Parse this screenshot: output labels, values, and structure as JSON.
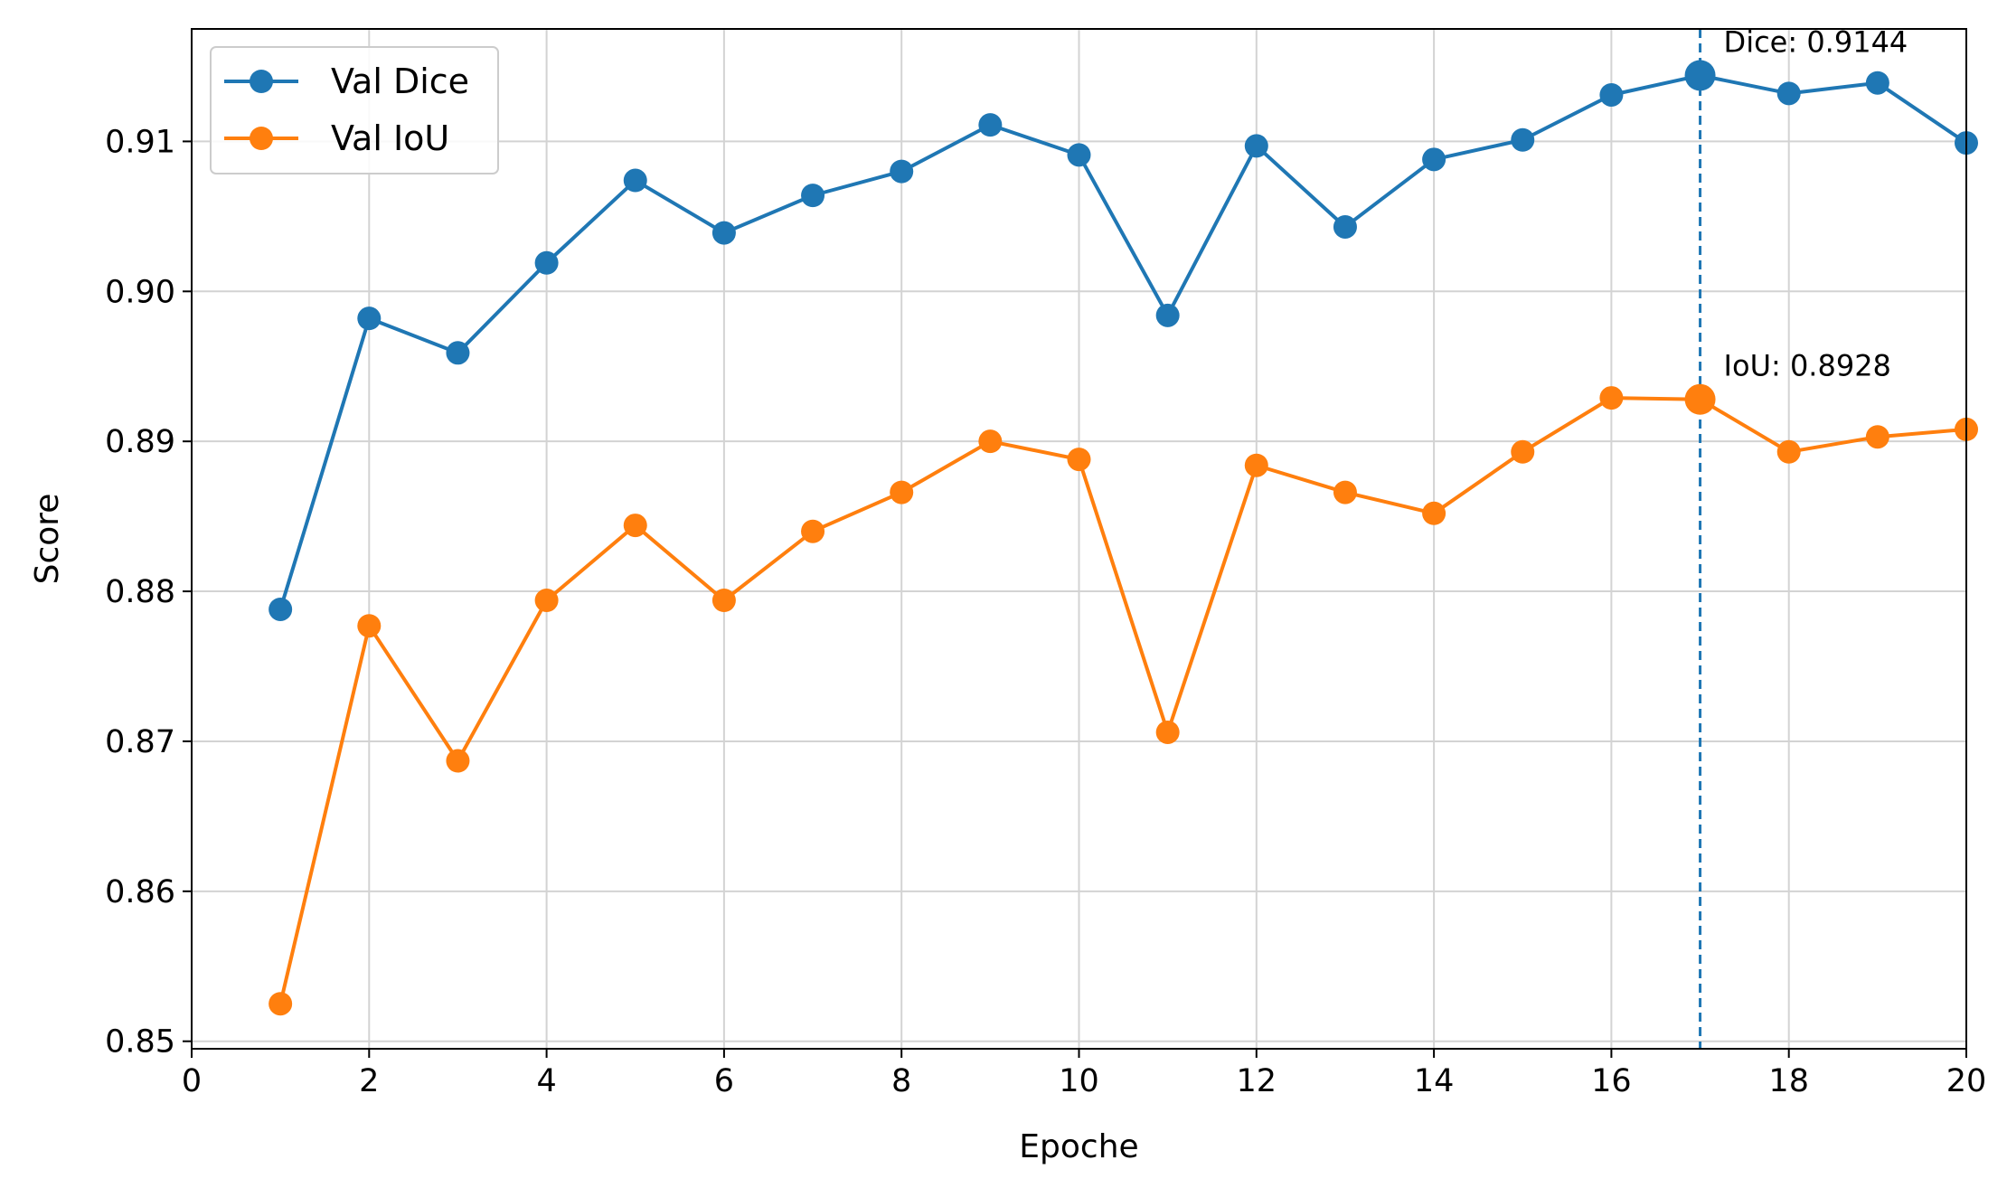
{
  "chart_data": {
    "type": "line",
    "title": "",
    "xlabel": "Epoche",
    "ylabel": "Score",
    "xlim": [
      0,
      20
    ],
    "ylim": [
      0.8495,
      0.9175
    ],
    "xticks": [
      0,
      2,
      4,
      6,
      8,
      10,
      12,
      14,
      16,
      18,
      20
    ],
    "yticks": [
      0.85,
      0.86,
      0.87,
      0.88,
      0.89,
      0.9,
      0.91
    ],
    "ytick_labels": [
      "0.85",
      "0.86",
      "0.87",
      "0.88",
      "0.89",
      "0.90",
      "0.91"
    ],
    "grid": true,
    "legend_position": "top-left",
    "x": [
      1,
      2,
      3,
      4,
      5,
      6,
      7,
      8,
      9,
      10,
      11,
      12,
      13,
      14,
      15,
      16,
      17,
      18,
      19,
      20
    ],
    "series": [
      {
        "name": "Val Dice",
        "color": "#1f77b4",
        "values": [
          0.8788,
          0.8982,
          0.8959,
          0.9019,
          0.9074,
          0.9039,
          0.9064,
          0.908,
          0.9111,
          0.9091,
          0.8984,
          0.9097,
          0.9043,
          0.9088,
          0.9101,
          0.9131,
          0.9144,
          0.9132,
          0.9139,
          0.9099
        ]
      },
      {
        "name": "Val IoU",
        "color": "#ff7f0e",
        "values": [
          0.8525,
          0.8777,
          0.8687,
          0.8794,
          0.8844,
          0.8794,
          0.884,
          0.8866,
          0.89,
          0.8888,
          0.8706,
          0.8884,
          0.8866,
          0.8852,
          0.8893,
          0.8929,
          0.8928,
          0.8893,
          0.8903,
          0.8908
        ]
      }
    ],
    "best_epoch": 17,
    "best_line_color": "#1f77b4",
    "annotations": [
      {
        "text": "Dice: 0.9144",
        "x": 17,
        "y": 0.9144,
        "series": 0
      },
      {
        "text": "IoU: 0.8928",
        "x": 17,
        "y": 0.8928,
        "series": 1
      }
    ]
  }
}
